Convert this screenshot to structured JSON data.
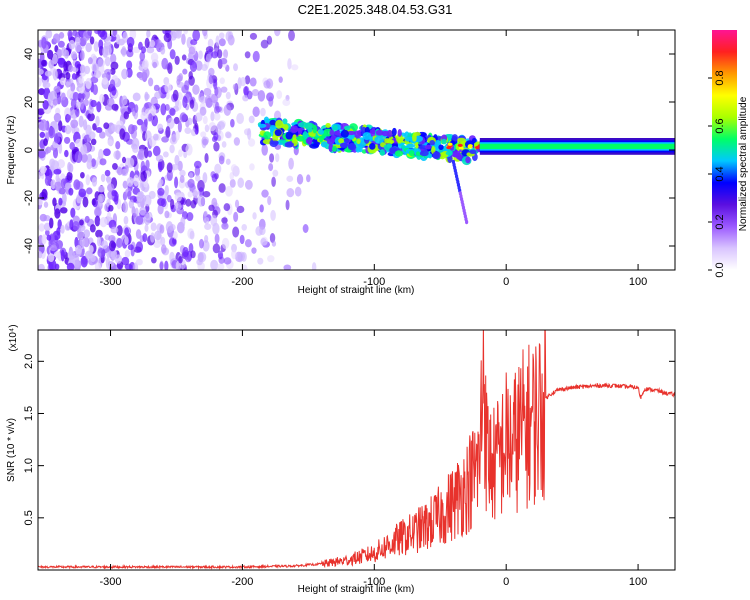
{
  "title": "C2E1.2025.348.04.53.G31",
  "chart_data": [
    {
      "type": "heatmap",
      "xlabel": "Height of straight line (km)",
      "ylabel": "Frequency (Hz)",
      "xlim": [
        -355,
        128
      ],
      "ylim": [
        -50,
        50
      ],
      "x_ticks": [
        -300,
        -200,
        -100,
        0,
        100
      ],
      "y_ticks": [
        -40,
        -20,
        0,
        20,
        40
      ],
      "colorbar": {
        "label": "Normalized spectral amplitude",
        "range": [
          0,
          1
        ],
        "ticks": [
          "0.0",
          "0.2",
          "0.4",
          "0.6",
          "0.8"
        ],
        "tick_values": [
          0.0,
          0.2,
          0.4,
          0.6,
          0.8
        ],
        "colors": [
          "#ffffff",
          "#d9c4ff",
          "#9b59ff",
          "#5a0fe0",
          "#0000ff",
          "#00c8ff",
          "#00ff66",
          "#aaff00",
          "#ffff00",
          "#ff9900",
          "#ff2020",
          "#ff1493"
        ]
      },
      "regions": {
        "noise_x": [
          -355,
          -140
        ],
        "transition_x": [
          -185,
          -20
        ],
        "tone_x": [
          -20,
          128
        ],
        "tone_freq_hz": 1.5
      }
    },
    {
      "type": "line",
      "xlabel": "Height of straight line (km)",
      "ylabel": "SNR (10 * v/v)",
      "y_multiplier": "(x10⁴)",
      "xlim": [
        -355,
        128
      ],
      "ylim": [
        0,
        2.3
      ],
      "x_ticks": [
        -300,
        -200,
        -100,
        0,
        100
      ],
      "y_ticks": [
        0.5,
        1.0,
        1.5,
        2.0
      ],
      "y_tick_labels": [
        "0.5",
        "1.0",
        "1.5",
        "2.0"
      ],
      "color": "#e8322c",
      "x": [
        -355,
        -300,
        -250,
        -200,
        -160,
        -140,
        -120,
        -100,
        -90,
        -80,
        -70,
        -60,
        -50,
        -40,
        -30,
        -25,
        -20,
        -17,
        -15,
        -10,
        -5,
        0,
        5,
        10,
        15,
        20,
        25,
        30,
        35,
        40,
        50,
        60,
        70,
        80,
        90,
        100,
        102,
        105,
        110,
        115,
        120,
        128
      ],
      "y": [
        0.03,
        0.03,
        0.03,
        0.03,
        0.04,
        0.06,
        0.1,
        0.17,
        0.25,
        0.32,
        0.38,
        0.45,
        0.55,
        0.68,
        0.85,
        0.95,
        1.1,
        2.25,
        1.2,
        1.05,
        1.15,
        1.3,
        1.25,
        1.4,
        1.45,
        1.5,
        1.58,
        1.65,
        1.7,
        1.73,
        1.75,
        1.76,
        1.77,
        1.77,
        1.76,
        1.75,
        1.65,
        1.74,
        1.73,
        1.72,
        1.7,
        1.68
      ]
    }
  ]
}
